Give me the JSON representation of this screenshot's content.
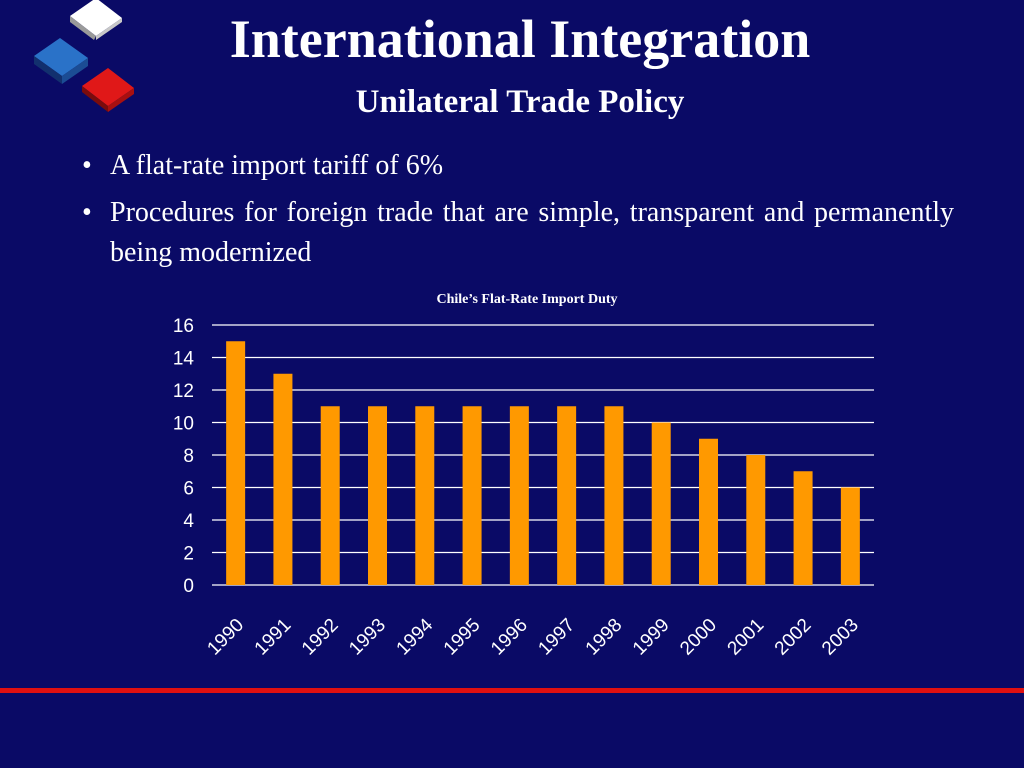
{
  "slide": {
    "title": "International Integration",
    "subtitle": "Unilateral Trade Policy",
    "bullets": [
      "A flat-rate import tariff of 6%",
      "Procedures for foreign trade that are simple, transparent and permanently being modernized"
    ],
    "icon": "stacked-cubes-logo-icon"
  },
  "colors": {
    "background": "#0a0a66",
    "bar": "#ff9900",
    "accent_line": "#e01010",
    "text": "#ffffff"
  },
  "chart_data": {
    "type": "bar",
    "title": "Chile’s Flat-Rate Import Duty",
    "xlabel": "",
    "ylabel": "",
    "categories": [
      "1990",
      "1991",
      "1992",
      "1993",
      "1994",
      "1995",
      "1996",
      "1997",
      "1998",
      "1999",
      "2000",
      "2001",
      "2002",
      "2003"
    ],
    "values": [
      15,
      13,
      11,
      11,
      11,
      11,
      11,
      11,
      11,
      10,
      9,
      8,
      7,
      6
    ],
    "ylim": [
      0,
      16
    ],
    "yticks": [
      0,
      2,
      4,
      6,
      8,
      10,
      12,
      14,
      16
    ],
    "grid": true,
    "legend": "none"
  }
}
